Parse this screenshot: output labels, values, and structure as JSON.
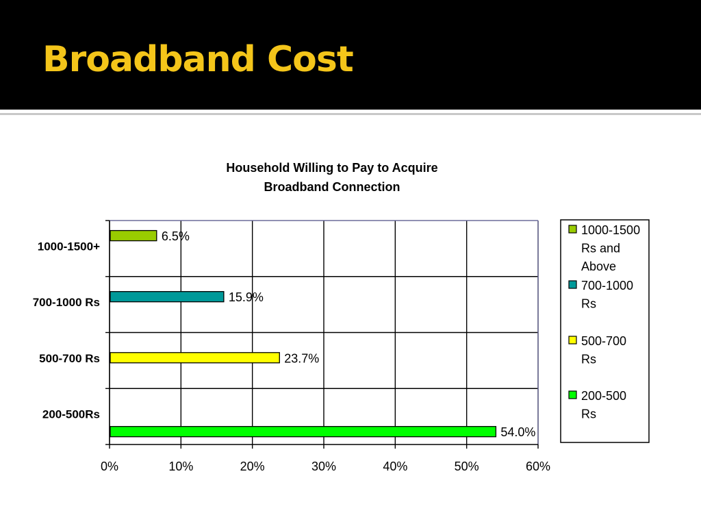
{
  "slide": {
    "title": "Broadband Cost"
  },
  "colors": {
    "header_bg": "#000000",
    "title_color": "#f4c51a",
    "rule": "#c8c8c8"
  },
  "chart_data": {
    "type": "bar",
    "orientation": "horizontal",
    "title_lines": [
      "Household Willing to Pay to Acquire",
      "Broadband Connection"
    ],
    "categories": [
      "1000-1500+",
      "700-1000 Rs",
      "500-700 Rs",
      "200-500Rs"
    ],
    "values": [
      6.5,
      15.9,
      23.7,
      54.0
    ],
    "value_labels": [
      "6.5%",
      "15.9%",
      "23.7%",
      "54.0%"
    ],
    "colors": [
      "#99cc00",
      "#009999",
      "#ffff00",
      "#00ff00"
    ],
    "xlim": [
      0,
      60
    ],
    "xticks": [
      0,
      10,
      20,
      30,
      40,
      50,
      60
    ],
    "xtick_labels": [
      "0%",
      "10%",
      "20%",
      "30%",
      "40%",
      "50%",
      "60%"
    ],
    "grid": true,
    "legend_position": "right",
    "legend": [
      {
        "lines": [
          "1000-1500",
          "Rs and",
          "Above"
        ],
        "color": "#99cc00"
      },
      {
        "lines": [
          "700-1000",
          "Rs"
        ],
        "color": "#009999"
      },
      {
        "lines": [
          "500-700",
          "Rs"
        ],
        "color": "#ffff00"
      },
      {
        "lines": [
          "200-500",
          "Rs"
        ],
        "color": "#00ff00"
      }
    ]
  }
}
